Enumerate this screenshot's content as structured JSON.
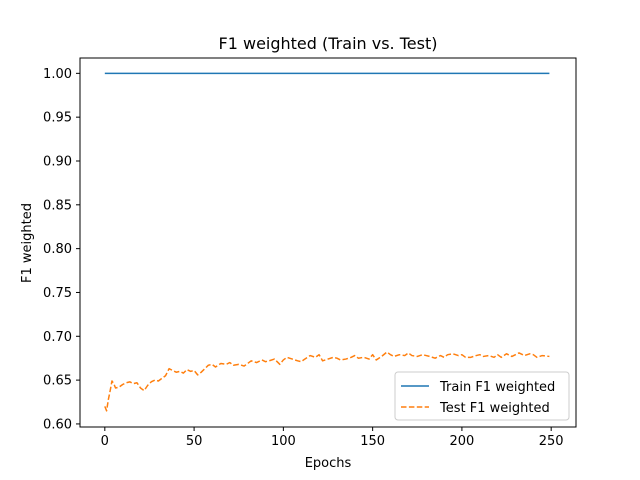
{
  "chart_data": {
    "type": "line",
    "title": "F1 weighted (Train vs. Test)",
    "xlabel": "Epochs",
    "ylabel": "F1 weighted",
    "xlim": [
      -13.9,
      263.9
    ],
    "ylim": [
      0.5965,
      1.0175
    ],
    "xticks": [
      0,
      50,
      100,
      150,
      200,
      250
    ],
    "yticks": [
      0.6,
      0.65,
      0.7,
      0.75,
      0.8,
      0.85,
      0.9,
      0.95,
      1.0
    ],
    "ytick_labels": [
      "0.60",
      "0.65",
      "0.70",
      "0.75",
      "0.80",
      "0.85",
      "0.90",
      "0.95",
      "1.00"
    ],
    "xtick_labels": [
      "0",
      "50",
      "100",
      "150",
      "200",
      "250"
    ],
    "grid": false,
    "legend_position": "lower-right",
    "series": [
      {
        "name": "Train F1 weighted",
        "color": "#1f77b4",
        "style": "solid",
        "x": [
          0,
          249
        ],
        "y": [
          1.0,
          1.0
        ]
      },
      {
        "name": "Test F1 weighted",
        "color": "#ff7f0e",
        "style": "dashed",
        "x": [
          0,
          1,
          2,
          3,
          4,
          5,
          6,
          8,
          10,
          12,
          14,
          16,
          18,
          20,
          22,
          24,
          26,
          28,
          30,
          32,
          34,
          36,
          38,
          40,
          42,
          44,
          46,
          48,
          50,
          52,
          54,
          56,
          58,
          60,
          62,
          65,
          68,
          70,
          72,
          75,
          78,
          80,
          82,
          85,
          88,
          90,
          92,
          95,
          98,
          100,
          102,
          105,
          108,
          110,
          112,
          115,
          118,
          120,
          122,
          125,
          128,
          130,
          132,
          135,
          138,
          140,
          142,
          145,
          148,
          150,
          152,
          155,
          158,
          160,
          162,
          165,
          168,
          170,
          172,
          175,
          178,
          180,
          182,
          185,
          188,
          190,
          192,
          195,
          198,
          200,
          202,
          205,
          208,
          210,
          212,
          215,
          218,
          220,
          222,
          225,
          228,
          230,
          232,
          235,
          238,
          240,
          242,
          245,
          249
        ],
        "y": [
          0.62,
          0.615,
          0.628,
          0.638,
          0.649,
          0.646,
          0.641,
          0.642,
          0.645,
          0.647,
          0.648,
          0.646,
          0.647,
          0.641,
          0.638,
          0.644,
          0.648,
          0.65,
          0.649,
          0.652,
          0.655,
          0.663,
          0.661,
          0.659,
          0.66,
          0.658,
          0.662,
          0.66,
          0.661,
          0.656,
          0.659,
          0.663,
          0.667,
          0.668,
          0.665,
          0.669,
          0.668,
          0.67,
          0.667,
          0.668,
          0.666,
          0.669,
          0.672,
          0.67,
          0.673,
          0.671,
          0.672,
          0.674,
          0.668,
          0.673,
          0.676,
          0.674,
          0.672,
          0.671,
          0.674,
          0.678,
          0.676,
          0.679,
          0.672,
          0.674,
          0.676,
          0.675,
          0.673,
          0.674,
          0.676,
          0.678,
          0.675,
          0.676,
          0.674,
          0.679,
          0.673,
          0.677,
          0.682,
          0.679,
          0.677,
          0.679,
          0.678,
          0.681,
          0.678,
          0.677,
          0.679,
          0.678,
          0.677,
          0.675,
          0.678,
          0.676,
          0.679,
          0.68,
          0.678,
          0.679,
          0.676,
          0.676,
          0.678,
          0.679,
          0.677,
          0.678,
          0.676,
          0.679,
          0.676,
          0.68,
          0.677,
          0.679,
          0.681,
          0.678,
          0.68,
          0.679,
          0.676,
          0.678,
          0.677
        ]
      }
    ]
  }
}
